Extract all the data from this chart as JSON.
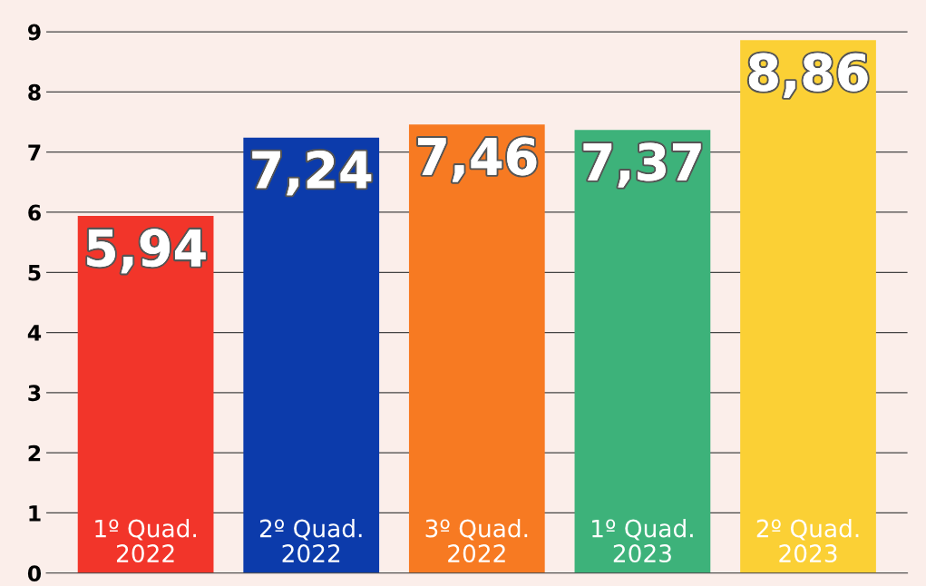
{
  "chart_data": {
    "type": "bar",
    "categories": [
      "1º Quad.\n2022",
      "2º Quad.\n2022",
      "3º Quad.\n2022",
      "1º Quad.\n2023",
      "2º Quad.\n2023"
    ],
    "values": [
      5.94,
      7.24,
      7.46,
      7.37,
      8.86
    ],
    "value_labels": [
      "5,94",
      "7,24",
      "7,46",
      "7,37",
      "8,86"
    ],
    "colors": [
      "#f2352a",
      "#0c3bab",
      "#f77a22",
      "#3db27a",
      "#fbd035"
    ],
    "ylim": [
      0,
      9.5
    ],
    "yticks": [
      0,
      1,
      2,
      3,
      4,
      5,
      6,
      7,
      8,
      9
    ],
    "grid": "y",
    "legend": false
  }
}
